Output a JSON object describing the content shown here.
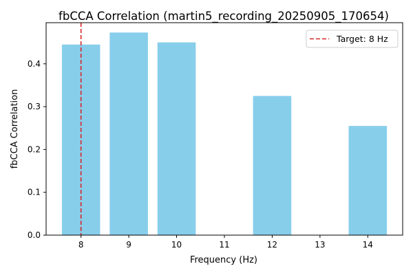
{
  "chart_data": {
    "type": "bar",
    "title": "fbCCA Correlation (martin5_recording_20250905_170654)",
    "xlabel": "Frequency (Hz)",
    "ylabel": "fbCCA Correlation",
    "x_ticks": [
      "8",
      "9",
      "10",
      "11",
      "12",
      "13",
      "14"
    ],
    "y_ticks": [
      "0.0",
      "0.1",
      "0.2",
      "0.3",
      "0.4"
    ],
    "xlim": [
      7.27,
      14.73
    ],
    "ylim": [
      0,
      0.496
    ],
    "bars": [
      {
        "frequency": 8,
        "value": 0.445
      },
      {
        "frequency": 9,
        "value": 0.473
      },
      {
        "frequency": 10,
        "value": 0.45
      },
      {
        "frequency": 12,
        "value": 0.325
      },
      {
        "frequency": 14,
        "value": 0.255
      }
    ],
    "bar_color": "#87ceeb",
    "target_line": {
      "frequency": 8,
      "label": "Target: 8 Hz",
      "color": "#d62728",
      "style": "dashed"
    },
    "legend": {
      "placement": "top-right",
      "entries": [
        "Target: 8 Hz"
      ]
    },
    "grid": false
  }
}
